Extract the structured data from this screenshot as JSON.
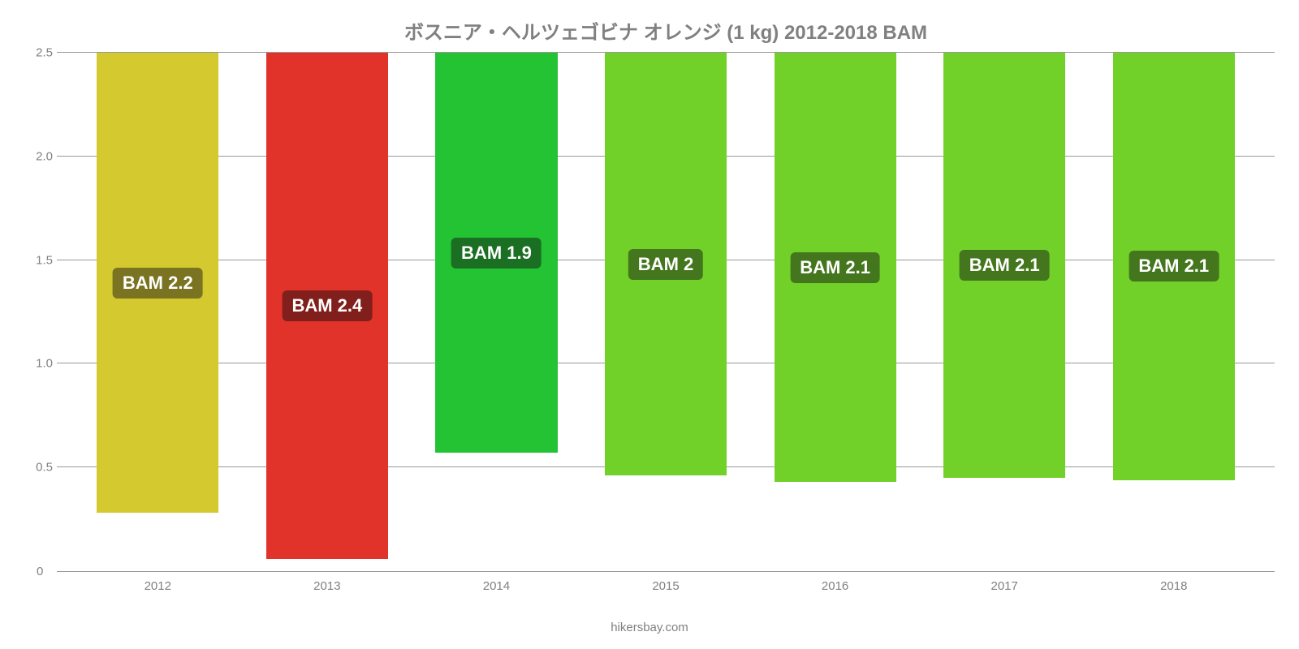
{
  "chart": {
    "type": "bar",
    "title": "ボスニア・ヘルツェゴビナ オレンジ (1 kg) 2012-2018 BAM",
    "title_color": "#808080",
    "title_fontsize": 24,
    "background_color": "#ffffff",
    "grid_color": "#999999",
    "axis_label_color": "#808080",
    "axis_fontsize": 15,
    "ylim_min": 0,
    "ylim_max": 2.5,
    "ytick_step": 0.5,
    "yticks": [
      "0.5",
      "1.0",
      "1.5",
      "2.0",
      "2.5"
    ],
    "zero_label": "0",
    "categories": [
      "2012",
      "2013",
      "2014",
      "2015",
      "2016",
      "2017",
      "2018"
    ],
    "values": [
      2.22,
      2.44,
      1.93,
      2.04,
      2.07,
      2.05,
      2.06
    ],
    "value_labels": [
      "BAM 2.2",
      "BAM 2.4",
      "BAM 1.9",
      "BAM 2",
      "BAM 2.1",
      "BAM 2.1",
      "BAM 2.1"
    ],
    "bar_colors": [
      "#d4c92f",
      "#e2332b",
      "#24c333",
      "#72d129",
      "#72d129",
      "#72d129",
      "#72d129"
    ],
    "label_bg_colors": [
      "#7a7322",
      "#801f1b",
      "#1a6f22",
      "#44771d",
      "#44771d",
      "#44771d",
      "#44771d"
    ],
    "label_text_color": "#ffffff",
    "label_fontsize": 22,
    "bar_width_pct": 72,
    "source": "hikersbay.com"
  }
}
